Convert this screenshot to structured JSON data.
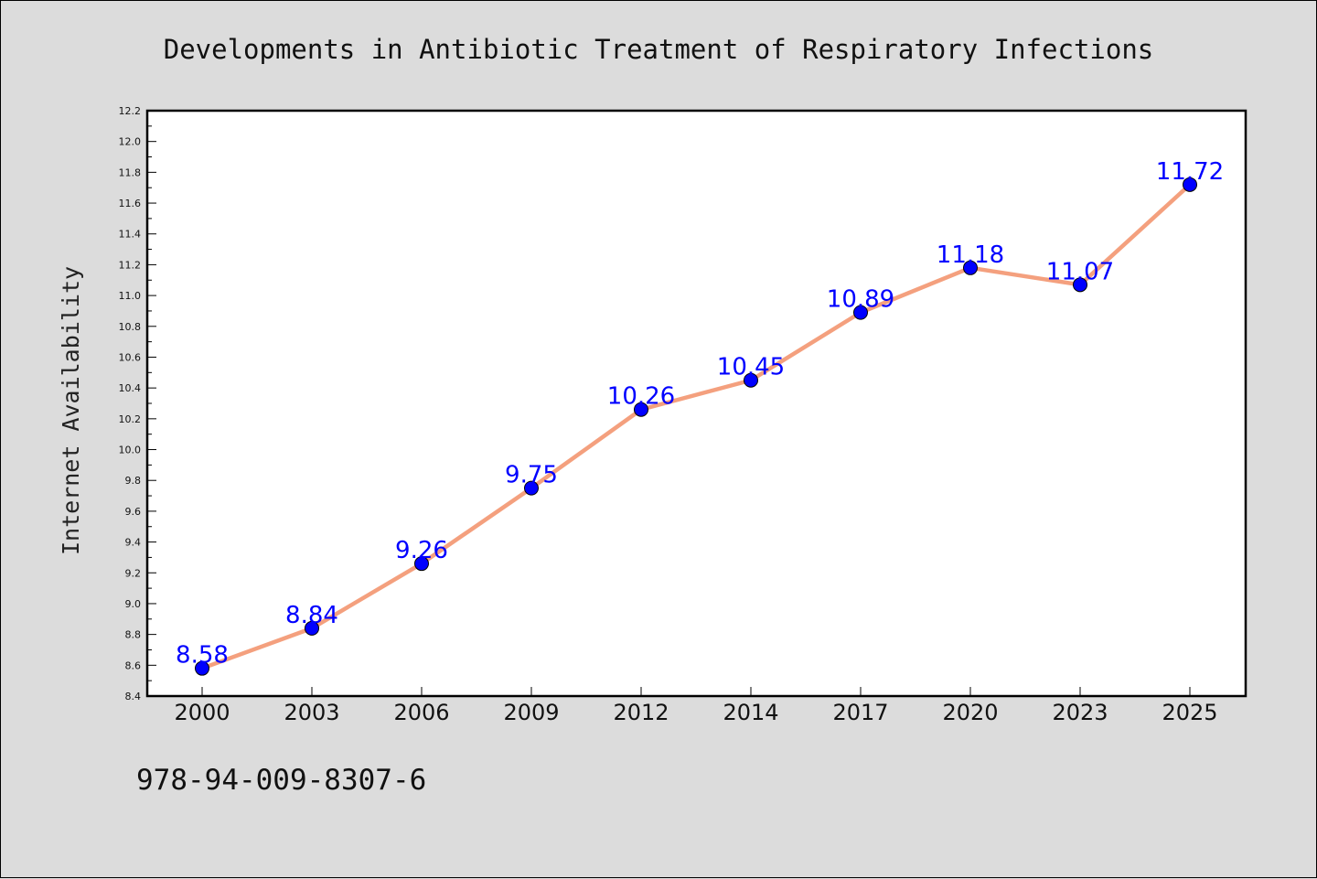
{
  "footer": {
    "code": "978-94-009-8307-6"
  },
  "chart_data": {
    "type": "line",
    "title": "Developments in Antibiotic Treatment of Respiratory Infections",
    "xlabel": "",
    "ylabel": "Internet Availability",
    "categories": [
      "2000",
      "2003",
      "2006",
      "2009",
      "2012",
      "2014",
      "2017",
      "2020",
      "2023",
      "2025"
    ],
    "values": [
      8.58,
      8.84,
      9.26,
      9.75,
      10.26,
      10.45,
      10.89,
      11.18,
      11.07,
      11.72
    ],
    "ylim": [
      8.4,
      12.2
    ],
    "yticks": [
      "8.4",
      "8.6",
      "8.8",
      "9.0",
      "9.2",
      "9.4",
      "9.6",
      "9.8",
      "10.0",
      "10.2",
      "10.4",
      "10.6",
      "10.8",
      "11.0",
      "11.2",
      "11.4",
      "11.6",
      "11.8",
      "12.0",
      "12.2"
    ],
    "grid": false,
    "line_color": "#f4a07e",
    "marker_color": "#0000ff",
    "label_color": "#0000ff"
  }
}
